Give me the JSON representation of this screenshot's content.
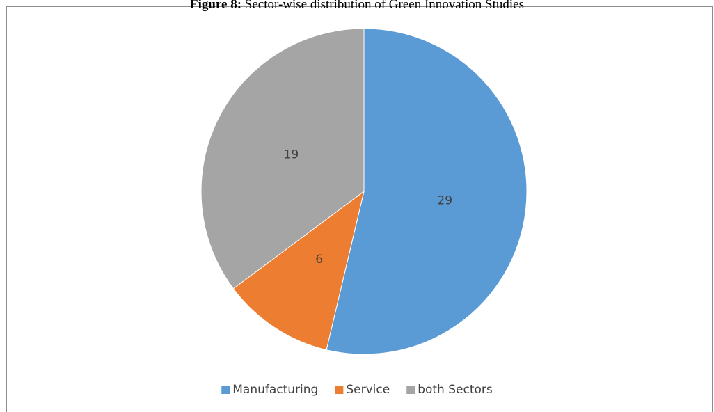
{
  "chart_data": {
    "type": "pie",
    "title_label": "Figure 8:",
    "title": "Sector-wise distribution of Green Innovation Studies",
    "categories": [
      "Manufacturing",
      "Service",
      "both Sectors"
    ],
    "values": [
      29,
      6,
      19
    ],
    "colors": [
      "#5b9bd5",
      "#ed7d31",
      "#a5a5a5"
    ],
    "legend": "bottom"
  }
}
